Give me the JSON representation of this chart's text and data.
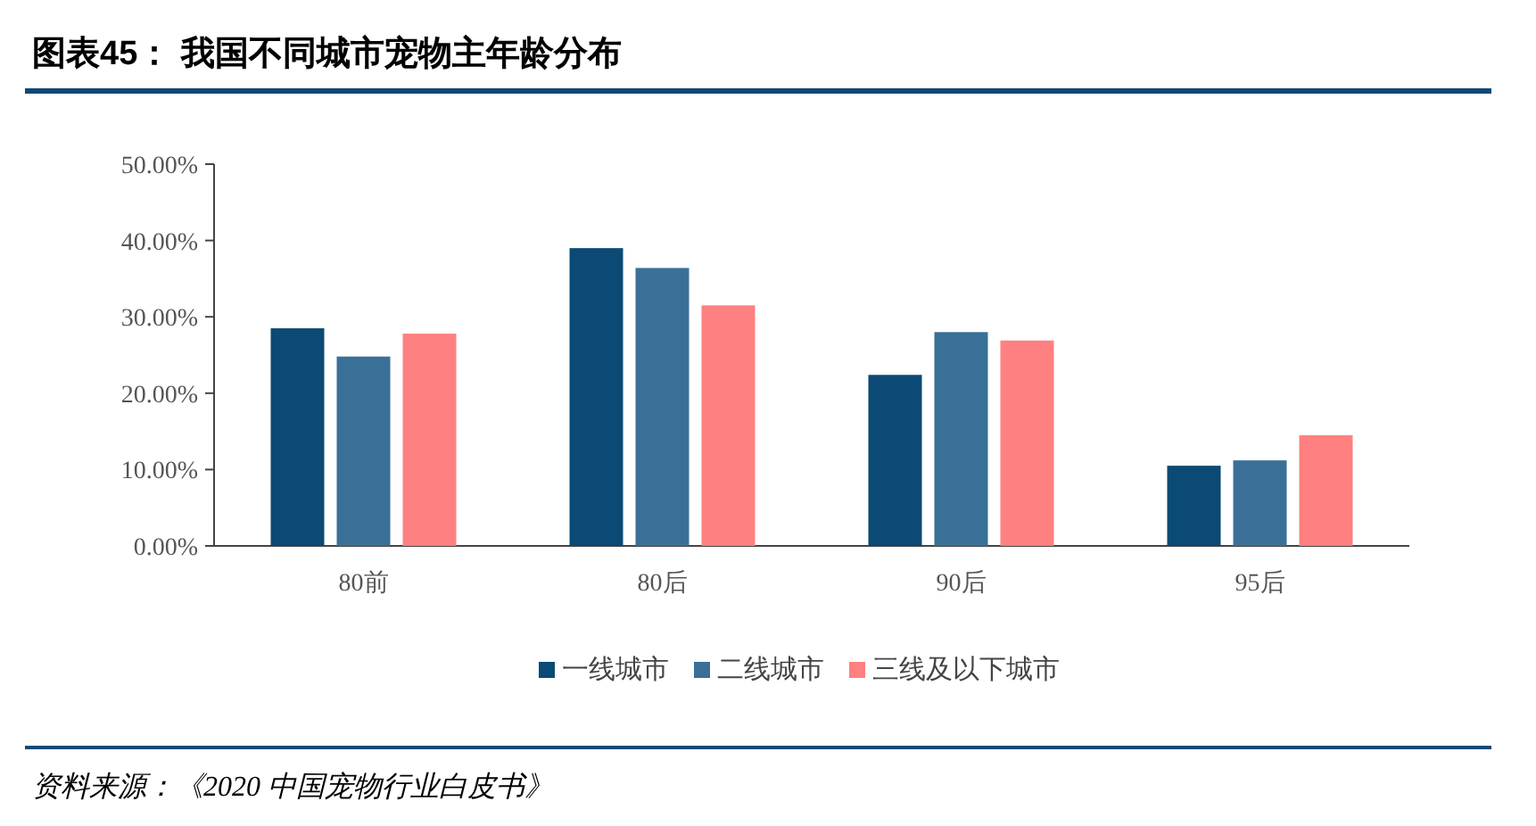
{
  "chart_data": {
    "type": "bar",
    "title": "图表45：  我国不同城市宠物主年龄分布",
    "categories": [
      "80前",
      "80后",
      "90后",
      "95后"
    ],
    "series": [
      {
        "name": "一线城市",
        "color": "#0b4a74",
        "values": [
          28.5,
          39.0,
          22.4,
          10.5
        ]
      },
      {
        "name": "二线城市",
        "color": "#3a7097",
        "values": [
          24.8,
          36.4,
          28.0,
          11.2
        ]
      },
      {
        "name": "三线及以下城市",
        "color": "#ff8080",
        "values": [
          27.8,
          31.5,
          26.9,
          14.5
        ]
      }
    ],
    "ylim": [
      0,
      50
    ],
    "yticks": [
      {
        "value": 0,
        "label": "0.00%"
      },
      {
        "value": 10,
        "label": "10.00%"
      },
      {
        "value": 20,
        "label": "20.00%"
      },
      {
        "value": 30,
        "label": "30.00%"
      },
      {
        "value": 40,
        "label": "40.00%"
      },
      {
        "value": 50,
        "label": "50.00%"
      }
    ],
    "legend": "bottom",
    "annotations": [
      "资料来源：《2020 中国宠物行业白皮书》"
    ]
  }
}
